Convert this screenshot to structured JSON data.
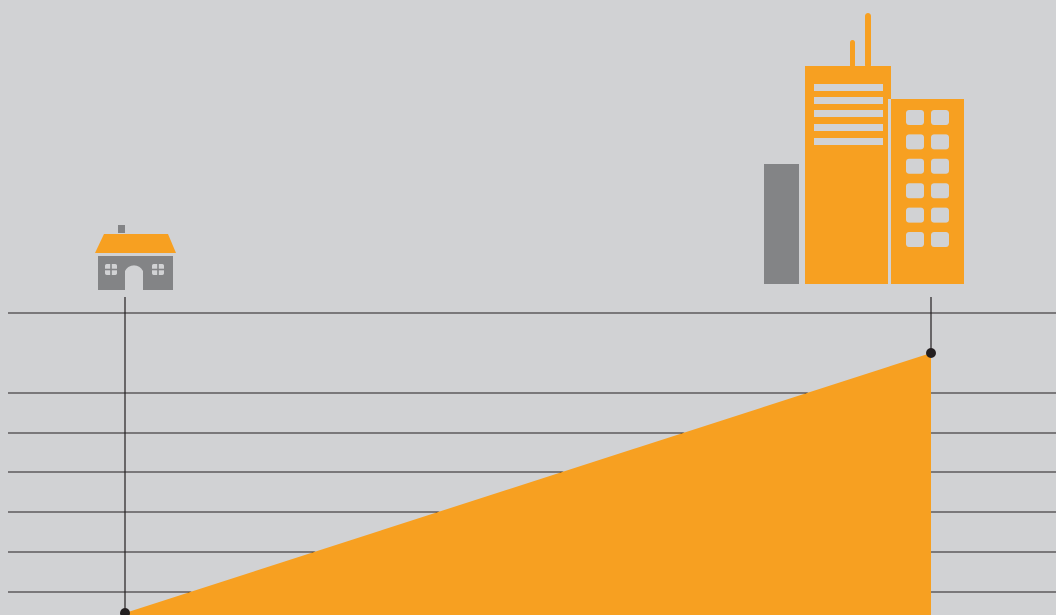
{
  "colors": {
    "background": "#d1d2d4",
    "accent": "#f7a021",
    "building_gray": "#838486",
    "line": "#231f20"
  },
  "icons": {
    "left": "house-icon",
    "right": "city-buildings-icon"
  },
  "horizontal_line_count": 7,
  "chart_data": {
    "type": "area",
    "x": [
      0,
      1
    ],
    "y": [
      0,
      1
    ],
    "xlabel": "",
    "ylabel": "",
    "title": "",
    "grid": true,
    "start_marker": "house-icon",
    "end_marker": "city-buildings-icon"
  }
}
